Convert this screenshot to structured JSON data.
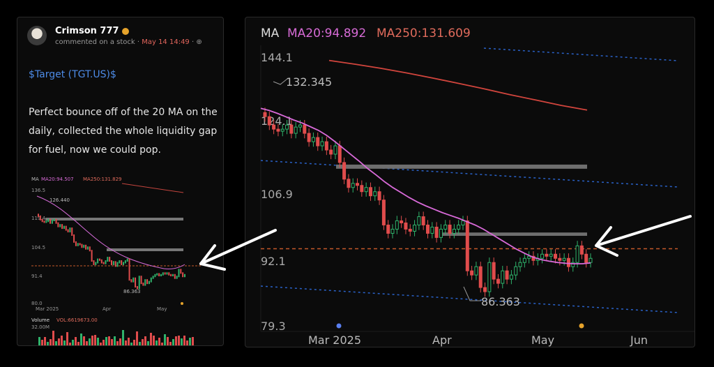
{
  "post": {
    "username": "Crimson 777",
    "action": "commented on a stock",
    "timestamp": "May 14 14:49",
    "ticker": "$Target (TGT.US)$",
    "text": "Perfect bounce off of the 20 MA on the daily, collected the whole liquidity gap for fuel, now we could pop."
  },
  "mini_chart": {
    "ma_label": "MA",
    "ma20": "MA20:94.507",
    "ma250": "MA250:131.829",
    "y_ticks": [
      "136.5",
      "119.4",
      "104.5",
      "91.4",
      "80.0"
    ],
    "high_label": "126.440",
    "low_label": "86.363",
    "x_ticks": [
      "Mar 2025",
      "Apr",
      "May"
    ],
    "volume_label": "Volume",
    "volume_value": "VOL:6619673.00",
    "volume_tick": "32.00M"
  },
  "chart_data": {
    "type": "candlestick",
    "indicator_label": "MA",
    "ma20_label": "MA20:94.892",
    "ma250_label": "MA250:131.609",
    "y_ticks": [
      "144.1",
      "124.1",
      "106.9",
      "92.1",
      "79.3"
    ],
    "x_ticks": [
      "Mar 2025",
      "Apr",
      "May",
      "Jun"
    ],
    "high_label": "132.345",
    "low_label": "86.363",
    "price_range": [
      79.3,
      144.1
    ],
    "close_series": [
      130,
      128,
      127,
      126.5,
      127,
      128,
      126,
      127.5,
      128,
      126,
      124,
      125,
      123,
      124,
      122,
      121,
      123,
      119,
      115,
      113,
      114,
      113.5,
      112,
      113,
      111,
      112,
      110,
      104,
      102,
      103,
      105,
      104.5,
      103,
      102.5,
      104,
      106,
      104,
      102,
      103.5,
      101,
      103,
      104,
      102,
      103,
      104,
      105,
      93,
      92,
      94,
      89,
      88,
      95,
      91,
      90,
      93,
      91,
      92,
      94,
      95,
      96,
      96.5,
      95.5,
      96,
      97,
      96.5,
      97,
      96,
      95.5,
      96,
      94,
      95,
      99,
      97,
      95,
      96
    ],
    "ma20_series": [
      132,
      131.5,
      130.8,
      130,
      129.2,
      128.5,
      127.6,
      126.7,
      125.5,
      124,
      122.4,
      120.8,
      119.2,
      117.5,
      116,
      114.4,
      113,
      111.8,
      110.6,
      109.5,
      108.6,
      107.8,
      107,
      106.3,
      105.6,
      104.8,
      104,
      103,
      101.8,
      100.6,
      99.4,
      98.2,
      97.2,
      96.3,
      95.7,
      95.3,
      95,
      94.8,
      94.7,
      94.7,
      94.9
    ],
    "ma250_series": [
      143.5,
      142.6,
      141.6,
      140.5,
      139.3,
      138,
      136.7,
      135.3,
      134,
      132.7,
      131.6
    ],
    "liquidity_gap_zones": [
      [
        118.5,
        117.5
      ],
      [
        102.2,
        101.4
      ]
    ],
    "reference_line": 98.3
  }
}
